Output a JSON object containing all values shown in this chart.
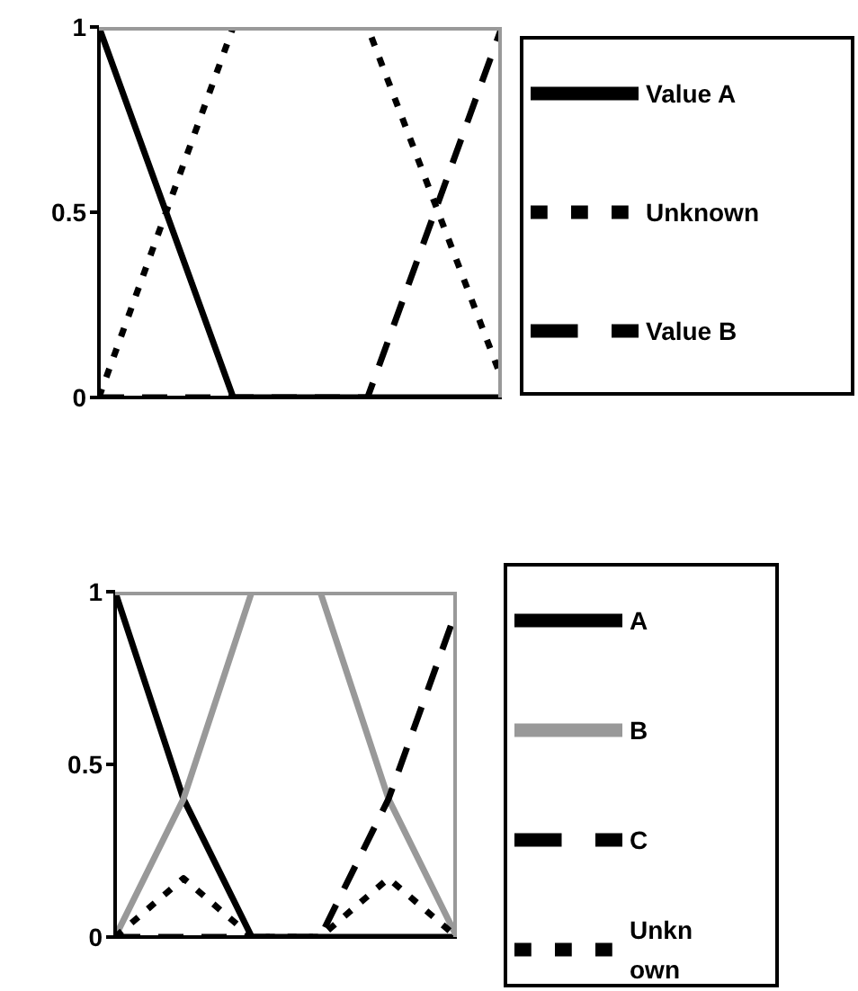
{
  "chart_data": [
    {
      "type": "line",
      "categories": [
        null,
        null,
        null,
        null
      ],
      "series": [
        {
          "name": "Value A",
          "color": "#000000",
          "line_style": "solid",
          "values": [
            1,
            0,
            0,
            0
          ]
        },
        {
          "name": "Unknown",
          "color": "#000000",
          "line_style": "dotted",
          "values": [
            0,
            1,
            1,
            0.05
          ]
        },
        {
          "name": "Value B",
          "color": "#000000",
          "line_style": "dashed",
          "values": [
            0,
            0,
            0,
            1
          ]
        }
      ],
      "ylim": [
        0,
        1
      ],
      "yticks": [
        0,
        0.5,
        1
      ],
      "grid": false,
      "legend": "right",
      "marker": "none",
      "tick_labels": "y"
    },
    {
      "type": "line",
      "categories": [
        null,
        null,
        null,
        null,
        null,
        null
      ],
      "series": [
        {
          "name": "A",
          "color": "#000000",
          "line_style": "solid",
          "values": [
            1,
            0.4,
            0,
            0,
            0,
            0
          ]
        },
        {
          "name": "B",
          "color": "#999999",
          "line_style": "solid",
          "values": [
            0,
            0.4,
            1,
            1,
            0.4,
            0
          ]
        },
        {
          "name": "C",
          "color": "#000000",
          "line_style": "dashed",
          "values": [
            0,
            0,
            0,
            0,
            0.4,
            0.95
          ]
        },
        {
          "name": "Unknown",
          "color": "#000000",
          "line_style": "dotted",
          "values": [
            0,
            0.17,
            0,
            0,
            0.17,
            0
          ]
        }
      ],
      "ylim": [
        0,
        1
      ],
      "yticks": [
        0,
        0.5,
        1
      ],
      "grid": false,
      "legend": "right",
      "marker": "none",
      "tick_labels": "y"
    }
  ]
}
